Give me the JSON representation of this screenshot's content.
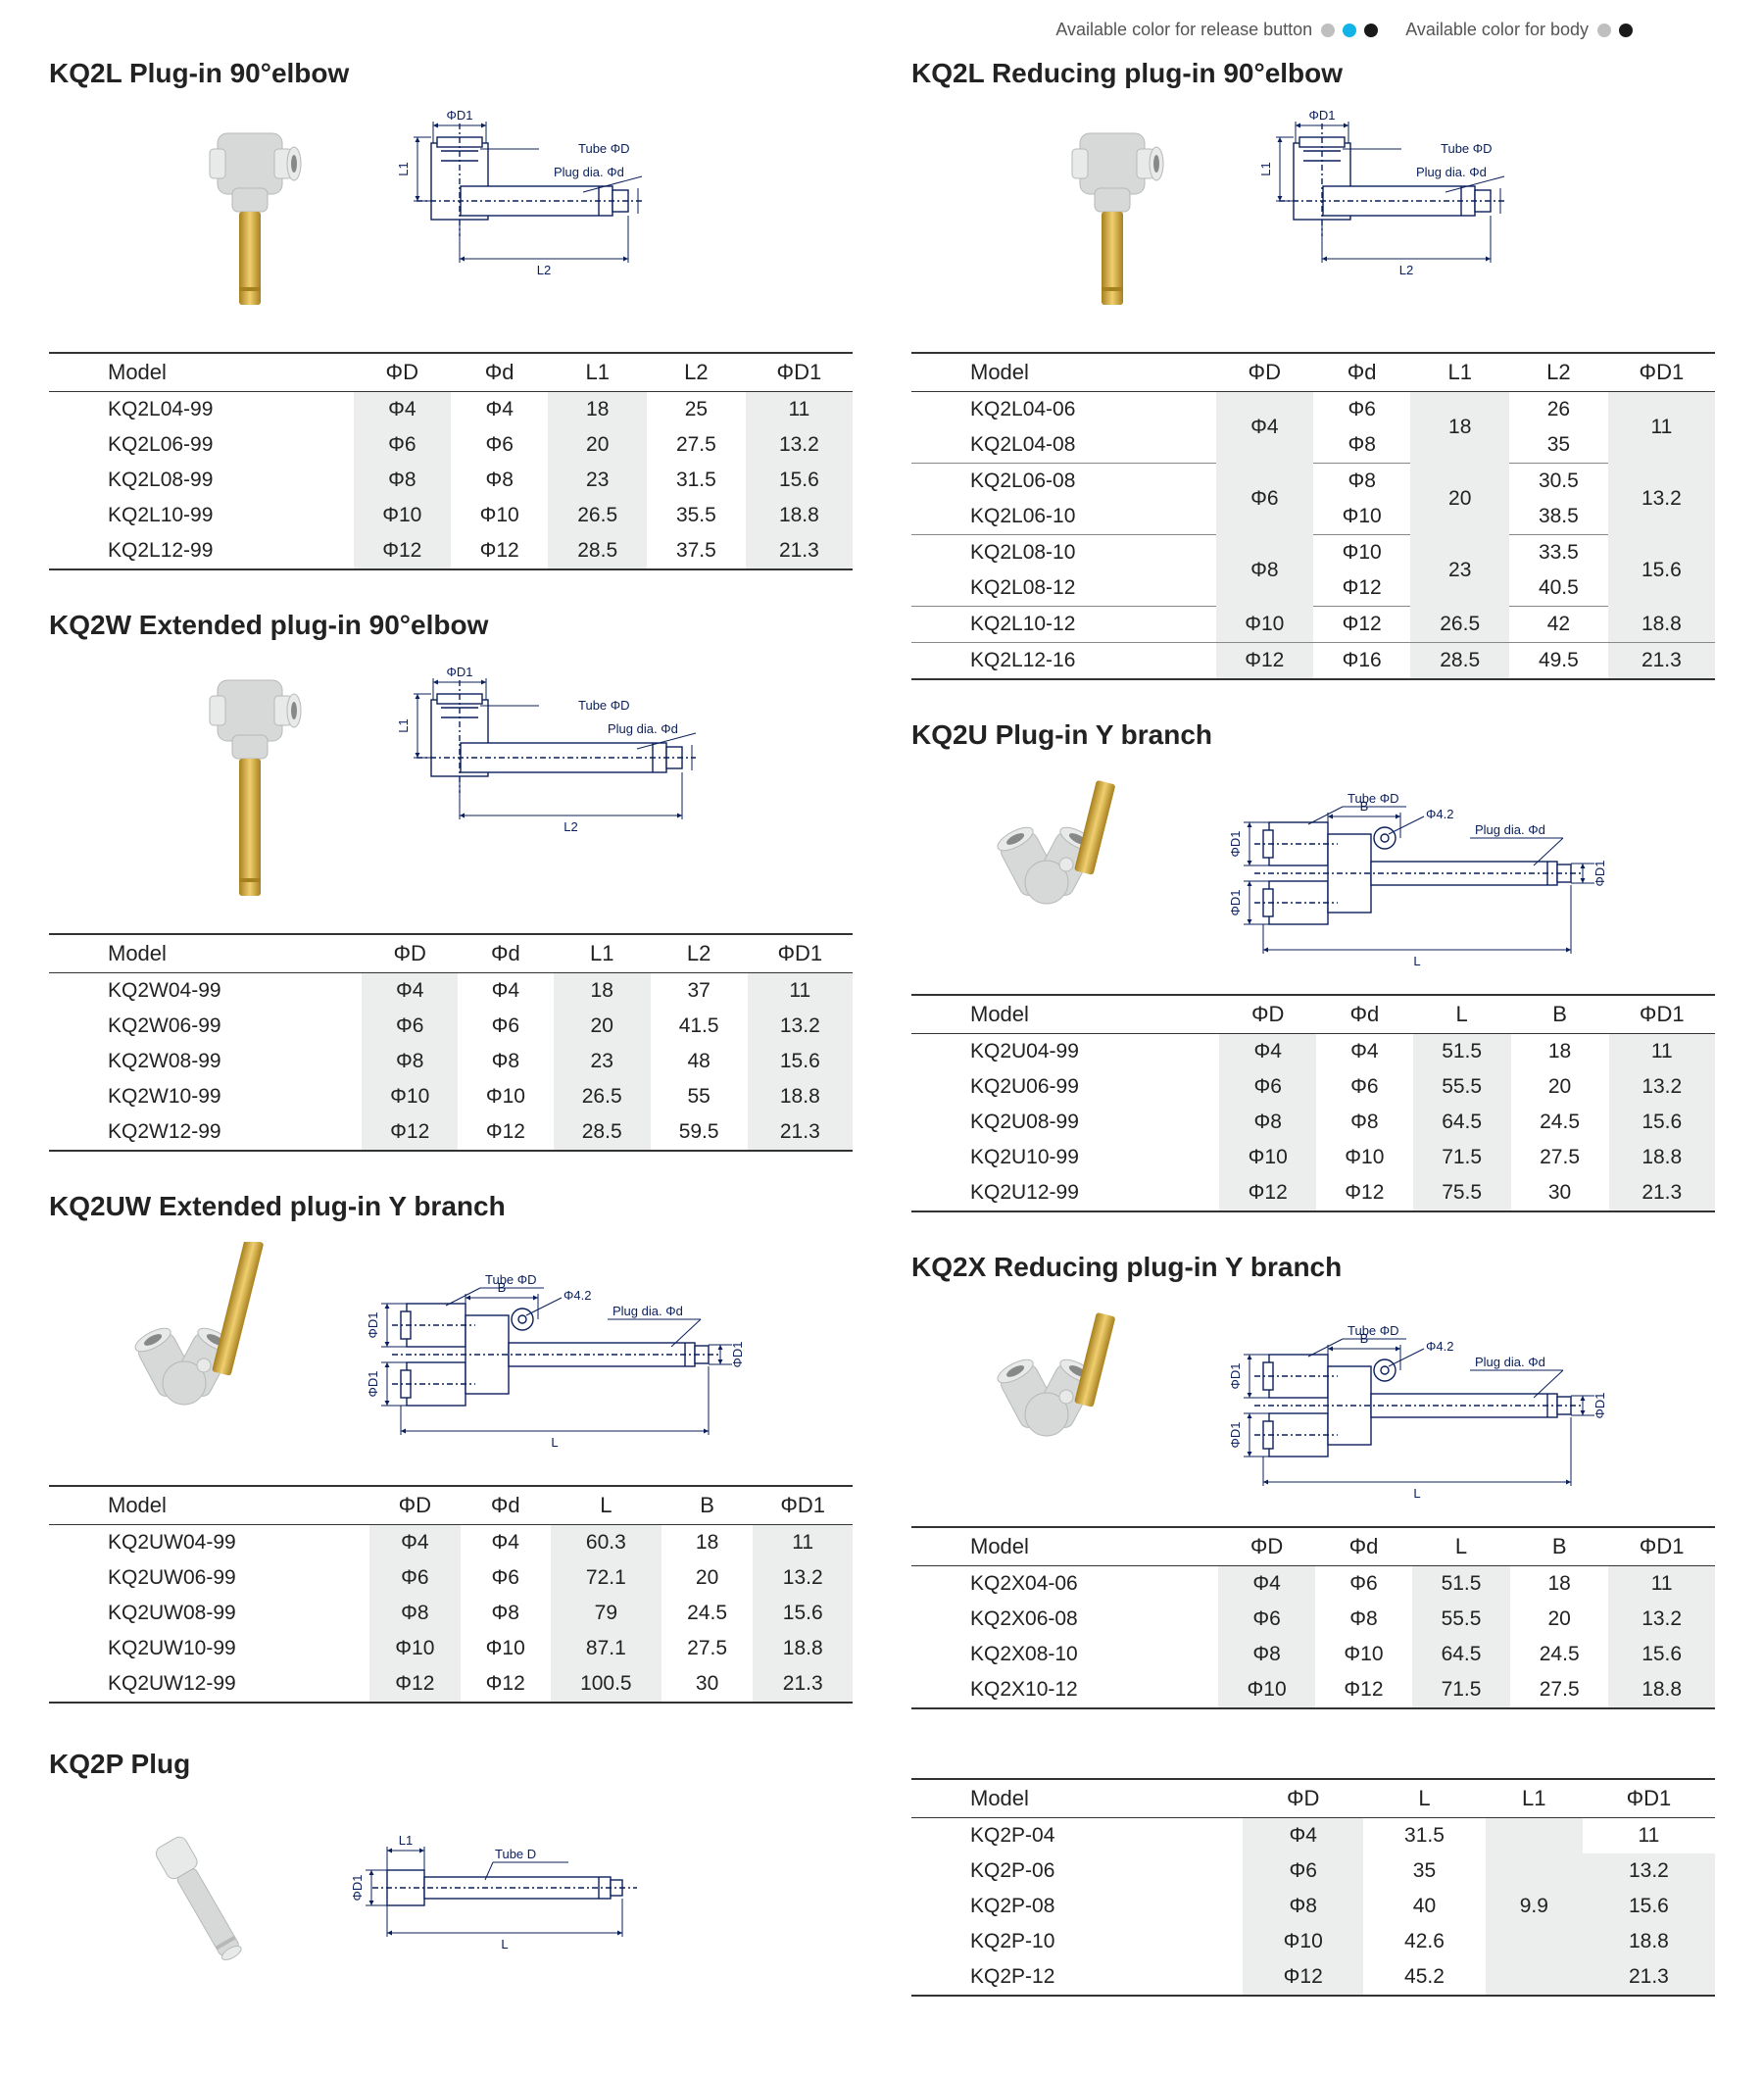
{
  "legend": {
    "release_label": "Available color for release button",
    "body_label": "Available color for body",
    "release_colors": [
      "#bfbfbf",
      "#12b3e6",
      "#1a1a1a"
    ],
    "body_colors": [
      "#bfbfbf",
      "#1a1a1a"
    ]
  },
  "diagram_labels": {
    "tube": "Tube ΦD",
    "plug": "Plug dia. Φd",
    "tube_d": "Tube    D",
    "L1": "L1",
    "L2": "L2",
    "L": "L",
    "B": "B",
    "D1": "ΦD1",
    "phi42": "Φ4.2"
  },
  "photo_colors": {
    "body": "#d6d9d8",
    "body_light": "#e8eae9",
    "body_shadow": "#b6b9b8",
    "brass": "#d6a93a",
    "brass_light": "#f0cf70",
    "brass_dark": "#a7801e"
  },
  "diagram_style": {
    "stroke": "#0a1f5c",
    "stroke_width": 1.4,
    "fill": "#ffffff",
    "font_size": 13
  },
  "sections": {
    "kq2l": {
      "title": "KQ2L Plug-in 90°elbow",
      "columns": [
        "Model",
        "ΦD",
        "Φd",
        "L1",
        "L2",
        "ΦD1"
      ],
      "rows": [
        [
          "KQ2L04-99",
          "Φ4",
          "Φ4",
          "18",
          "25",
          "11"
        ],
        [
          "KQ2L06-99",
          "Φ6",
          "Φ6",
          "20",
          "27.5",
          "13.2"
        ],
        [
          "KQ2L08-99",
          "Φ8",
          "Φ8",
          "23",
          "31.5",
          "15.6"
        ],
        [
          "KQ2L10-99",
          "Φ10",
          "Φ10",
          "26.5",
          "35.5",
          "18.8"
        ],
        [
          "KQ2L12-99",
          "Φ12",
          "Φ12",
          "28.5",
          "37.5",
          "21.3"
        ]
      ]
    },
    "kq2l_red": {
      "title": "KQ2L Reducing plug-in 90°elbow",
      "columns": [
        "Model",
        "ΦD",
        "Φd",
        "L1",
        "L2",
        "ΦD1"
      ],
      "groups": [
        {
          "models": [
            "KQ2L04-06",
            "KQ2L04-08"
          ],
          "D": "Φ4",
          "d": [
            "Φ6",
            "Φ8"
          ],
          "L1": "18",
          "L2": [
            "26",
            "35"
          ],
          "D1": "11"
        },
        {
          "models": [
            "KQ2L06-08",
            "KQ2L06-10"
          ],
          "D": "Φ6",
          "d": [
            "Φ8",
            "Φ10"
          ],
          "L1": "20",
          "L2": [
            "30.5",
            "38.5"
          ],
          "D1": "13.2"
        },
        {
          "models": [
            "KQ2L08-10",
            "KQ2L08-12"
          ],
          "D": "Φ8",
          "d": [
            "Φ10",
            "Φ12"
          ],
          "L1": "23",
          "L2": [
            "33.5",
            "40.5"
          ],
          "D1": "15.6"
        },
        {
          "models": [
            "KQ2L10-12"
          ],
          "D": "Φ10",
          "d": [
            "Φ12"
          ],
          "L1": "26.5",
          "L2": [
            "42"
          ],
          "D1": "18.8"
        },
        {
          "models": [
            "KQ2L12-16"
          ],
          "D": "Φ12",
          "d": [
            "Φ16"
          ],
          "L1": "28.5",
          "L2": [
            "49.5"
          ],
          "D1": "21.3"
        }
      ]
    },
    "kq2w": {
      "title": "KQ2W Extended plug-in 90°elbow",
      "columns": [
        "Model",
        "ΦD",
        "Φd",
        "L1",
        "L2",
        "ΦD1"
      ],
      "rows": [
        [
          "KQ2W04-99",
          "Φ4",
          "Φ4",
          "18",
          "37",
          "11"
        ],
        [
          "KQ2W06-99",
          "Φ6",
          "Φ6",
          "20",
          "41.5",
          "13.2"
        ],
        [
          "KQ2W08-99",
          "Φ8",
          "Φ8",
          "23",
          "48",
          "15.6"
        ],
        [
          "KQ2W10-99",
          "Φ10",
          "Φ10",
          "26.5",
          "55",
          "18.8"
        ],
        [
          "KQ2W12-99",
          "Φ12",
          "Φ12",
          "28.5",
          "59.5",
          "21.3"
        ]
      ]
    },
    "kq2u": {
      "title": "KQ2U Plug-in Y branch",
      "columns": [
        "Model",
        "ΦD",
        "Φd",
        "L",
        "B",
        "ΦD1"
      ],
      "rows": [
        [
          "KQ2U04-99",
          "Φ4",
          "Φ4",
          "51.5",
          "18",
          "11"
        ],
        [
          "KQ2U06-99",
          "Φ6",
          "Φ6",
          "55.5",
          "20",
          "13.2"
        ],
        [
          "KQ2U08-99",
          "Φ8",
          "Φ8",
          "64.5",
          "24.5",
          "15.6"
        ],
        [
          "KQ2U10-99",
          "Φ10",
          "Φ10",
          "71.5",
          "27.5",
          "18.8"
        ],
        [
          "KQ2U12-99",
          "Φ12",
          "Φ12",
          "75.5",
          "30",
          "21.3"
        ]
      ]
    },
    "kq2uw": {
      "title": "KQ2UW Extended plug-in Y branch",
      "columns": [
        "Model",
        "ΦD",
        "Φd",
        "L",
        "B",
        "ΦD1"
      ],
      "rows": [
        [
          "KQ2UW04-99",
          "Φ4",
          "Φ4",
          "60.3",
          "18",
          "11"
        ],
        [
          "KQ2UW06-99",
          "Φ6",
          "Φ6",
          "72.1",
          "20",
          "13.2"
        ],
        [
          "KQ2UW08-99",
          "Φ8",
          "Φ8",
          "79",
          "24.5",
          "15.6"
        ],
        [
          "KQ2UW10-99",
          "Φ10",
          "Φ10",
          "87.1",
          "27.5",
          "18.8"
        ],
        [
          "KQ2UW12-99",
          "Φ12",
          "Φ12",
          "100.5",
          "30",
          "21.3"
        ]
      ]
    },
    "kq2x": {
      "title": "KQ2X Reducing plug-in Y branch",
      "columns": [
        "Model",
        "ΦD",
        "Φd",
        "L",
        "B",
        "ΦD1"
      ],
      "rows": [
        [
          "KQ2X04-06",
          "Φ4",
          "Φ6",
          "51.5",
          "18",
          "11"
        ],
        [
          "KQ2X06-08",
          "Φ6",
          "Φ8",
          "55.5",
          "20",
          "13.2"
        ],
        [
          "KQ2X08-10",
          "Φ8",
          "Φ10",
          "64.5",
          "24.5",
          "15.6"
        ],
        [
          "KQ2X10-12",
          "Φ10",
          "Φ12",
          "71.5",
          "27.5",
          "18.8"
        ]
      ]
    },
    "kq2p": {
      "title": "KQ2P Plug",
      "columns": [
        "Model",
        "ΦD",
        "L",
        "L1",
        "ΦD1"
      ],
      "rows": [
        [
          "KQ2P-04",
          "Φ4",
          "31.5",
          "",
          "11"
        ],
        [
          "KQ2P-06",
          "Φ6",
          "35",
          "",
          "13.2"
        ],
        [
          "KQ2P-08",
          "Φ8",
          "40",
          "9.9",
          "15.6"
        ],
        [
          "KQ2P-10",
          "Φ10",
          "42.6",
          "",
          "18.8"
        ],
        [
          "KQ2P-12",
          "Φ12",
          "45.2",
          "",
          "21.3"
        ]
      ]
    }
  }
}
